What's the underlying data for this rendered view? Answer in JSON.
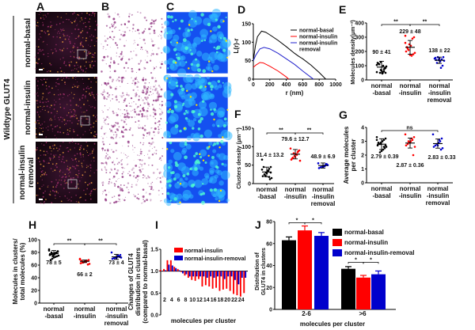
{
  "panel_letters": {
    "A": "A",
    "B": "B",
    "C": "C",
    "D": "D",
    "E": "E",
    "F": "F",
    "G": "G",
    "H": "H",
    "I": "I",
    "J": "J"
  },
  "images": {
    "group_label": "Wildtype GLUT4",
    "row_labels": [
      [
        "normal-basal"
      ],
      [
        "normal-insulin"
      ],
      [
        "normal-insulin",
        "removal"
      ]
    ]
  },
  "colors": {
    "basal": "#000000",
    "insulin": "#ff0000",
    "removal": "#0000cc",
    "heatmap_bg": "#1a5cff",
    "image_a_bg": "#150812",
    "image_b_dots": "#8a2a7a"
  },
  "chart_data": [
    {
      "id": "D",
      "type": "line",
      "xlabel": "r (nm)",
      "ylabel": "L(r)-r",
      "xlim": [
        0,
        1000
      ],
      "ylim": [
        0,
        150
      ],
      "xticks": [
        "0",
        "200",
        "400",
        "600",
        "800",
        "1000"
      ],
      "yticks": [
        "0",
        "50",
        "100",
        "150"
      ],
      "legend_placement": "top-right",
      "series": [
        {
          "name": "normal-basal",
          "color": "#000000",
          "points": [
            [
              0,
              50
            ],
            [
              25,
              90
            ],
            [
              50,
              115
            ],
            [
              100,
              130
            ],
            [
              150,
              127
            ],
            [
              200,
              120
            ],
            [
              300,
              105
            ],
            [
              400,
              88
            ],
            [
              500,
              70
            ],
            [
              550,
              62
            ],
            [
              600,
              55
            ],
            [
              700,
              38
            ],
            [
              800,
              18
            ],
            [
              880,
              0
            ]
          ]
        },
        {
          "name": "normal-insulin",
          "color": "#ff0000",
          "points": [
            [
              0,
              32
            ],
            [
              30,
              38
            ],
            [
              80,
              45
            ],
            [
              120,
              44
            ],
            [
              200,
              35
            ],
            [
              300,
              22
            ],
            [
              400,
              6
            ],
            [
              430,
              0
            ]
          ]
        },
        {
          "name": "normal-insulin\nremoval",
          "legend_lines": [
            "normal-insulin",
            "removal"
          ],
          "color": "#2222cc",
          "points": [
            [
              0,
              50
            ],
            [
              30,
              65
            ],
            [
              80,
              82
            ],
            [
              130,
              86
            ],
            [
              200,
              82
            ],
            [
              300,
              70
            ],
            [
              400,
              55
            ],
            [
              500,
              40
            ],
            [
              600,
              22
            ],
            [
              700,
              5
            ],
            [
              730,
              0
            ]
          ]
        }
      ]
    },
    {
      "id": "E",
      "type": "scatter",
      "ylabel": "Molecules density(μm⁻²)",
      "ylim": [
        0,
        400
      ],
      "yticks": [
        "0",
        "100",
        "200",
        "300",
        "400"
      ],
      "categories": [
        [
          "normal",
          "-basal"
        ],
        [
          "normal",
          "-insulin"
        ],
        [
          "normal",
          "-insulin",
          "removal"
        ]
      ],
      "series": [
        {
          "color": "#000000",
          "mean": 90,
          "sd": 41,
          "label": "90 ± 41",
          "values": [
            55,
            50,
            60,
            45,
            70,
            110,
            120,
            95,
            80,
            100,
            65,
            50,
            115,
            105,
            85,
            75,
            55,
            125
          ]
        },
        {
          "color": "#ff0000",
          "mean": 229,
          "sd": 48,
          "label": "229 ± 48",
          "values": [
            310,
            300,
            290,
            240,
            250,
            220,
            200,
            190,
            180,
            170,
            175,
            210,
            230,
            260
          ]
        },
        {
          "color": "#0000cc",
          "mean": 138,
          "sd": 22,
          "label": "138 ± 22",
          "values": [
            150,
            160,
            145,
            130,
            140,
            120,
            155,
            135,
            100,
            85,
            150,
            160,
            140
          ]
        }
      ],
      "significance": [
        {
          "from": 0,
          "to": 1,
          "label": "**"
        },
        {
          "from": 1,
          "to": 2,
          "label": "**"
        }
      ]
    },
    {
      "id": "F",
      "type": "scatter",
      "ylabel": "Clusters density (μm⁻²)",
      "ylim": [
        0,
        150
      ],
      "yticks": [
        "0",
        "50",
        "100",
        "150"
      ],
      "categories": [
        [
          "normal",
          "-basal"
        ],
        [
          "normal",
          "-insulin"
        ],
        [
          "normal",
          "-insulin",
          "removal"
        ]
      ],
      "series": [
        {
          "color": "#000000",
          "mean": 31.4,
          "sd": 13.2,
          "label": "31.4 ± 13.2",
          "values": [
            65,
            45,
            40,
            35,
            30,
            25,
            20,
            15,
            12,
            35,
            28,
            22,
            45,
            38,
            30,
            18
          ]
        },
        {
          "color": "#ff0000",
          "mean": 79.6,
          "sd": 12.7,
          "label": "79.6 ± 12.7",
          "values": [
            95,
            90,
            85,
            80,
            75,
            70,
            65,
            62,
            88,
            78,
            72,
            82,
            68
          ]
        },
        {
          "color": "#0000cc",
          "mean": 48.9,
          "sd": 6.9,
          "label": "48.9 ± 6.9",
          "values": [
            55,
            52,
            50,
            48,
            46,
            44,
            42,
            50,
            53,
            47,
            45
          ]
        }
      ],
      "significance": [
        {
          "from": 0,
          "to": 1,
          "label": "**"
        },
        {
          "from": 1,
          "to": 2,
          "label": "**"
        }
      ]
    },
    {
      "id": "G",
      "type": "scatter",
      "ylabel": "Average  molecules\nper cluster",
      "ylabel_lines": [
        "Average  molecules",
        "per cluster"
      ],
      "ylim": [
        0,
        4
      ],
      "yticks": [
        "0",
        "1",
        "2",
        "3",
        "4"
      ],
      "categories": [
        [
          "normal",
          "-basal"
        ],
        [
          "normal",
          "-insulin"
        ],
        [
          "normal",
          "-insulin",
          "removal"
        ]
      ],
      "series": [
        {
          "color": "#000000",
          "mean": 2.79,
          "sd": 0.39,
          "label": "2.79 ± 0.39",
          "values": [
            3.3,
            3.2,
            3.1,
            3.0,
            2.9,
            2.8,
            2.7,
            2.6,
            2.5,
            2.4,
            2.3,
            2.2,
            2.9,
            3.1,
            2.7,
            2.6,
            3.0,
            2.8
          ]
        },
        {
          "color": "#ff0000",
          "mean": 2.87,
          "sd": 0.36,
          "label": "2.87 ± 0.36",
          "values": [
            3.5,
            3.3,
            3.1,
            3.0,
            2.9,
            2.8,
            2.7,
            2.6,
            2.0,
            3.2,
            2.9,
            3.0
          ]
        },
        {
          "color": "#0000cc",
          "mean": 2.83,
          "sd": 0.33,
          "label": "2.83 ± 0.33",
          "values": [
            3.5,
            3.2,
            3.0,
            2.9,
            2.8,
            2.7,
            2.6,
            2.5,
            2.4,
            3.1,
            2.7
          ]
        }
      ],
      "significance": [
        {
          "from": 0,
          "to": 2,
          "label": "ns"
        }
      ]
    },
    {
      "id": "H",
      "type": "scatter",
      "ylabel_lines": [
        "Molecules in clusters/",
        "total molecules (%)"
      ],
      "ylim": [
        0,
        100
      ],
      "yticks": [
        "0",
        "20",
        "40",
        "60",
        "80",
        "100"
      ],
      "categories": [
        [
          "normal",
          "-basal"
        ],
        [
          "normal",
          "-insulin"
        ],
        [
          "normal",
          "-insulin",
          "removal"
        ]
      ],
      "series": [
        {
          "color": "#000000",
          "mean": 78,
          "sd": 5,
          "label": "78 ± 5",
          "values": [
            85,
            82,
            80,
            79,
            78,
            77,
            76,
            75,
            74,
            73,
            72,
            70,
            68,
            83,
            81,
            79,
            77,
            75,
            80,
            76
          ]
        },
        {
          "color": "#ff0000",
          "mean": 66,
          "sd": 2,
          "label": "66 ± 2",
          "values": [
            70,
            68,
            67,
            66,
            65,
            64,
            63,
            62,
            61,
            66,
            65,
            64,
            67,
            69
          ]
        },
        {
          "color": "#0000cc",
          "mean": 73,
          "sd": 4,
          "label": "73 ± 4",
          "values": [
            80,
            76,
            74,
            73,
            72,
            71,
            70,
            72,
            73,
            75,
            71
          ]
        }
      ],
      "significance": [
        {
          "from": 0,
          "to": 1,
          "label": "**"
        },
        {
          "from": 1,
          "to": 2,
          "label": "**"
        }
      ]
    },
    {
      "id": "I",
      "type": "bar",
      "xlabel": "molecules per cluster",
      "ylabel_lines": [
        "Changes of GLUT4",
        "distribution in clusters",
        "(compared to normal-basal)"
      ],
      "ylim": [
        0,
        1.5
      ],
      "baseline": 1.0,
      "yticks": [
        "0.0",
        "0.5",
        "1.0",
        "1.5"
      ],
      "xticks": [
        "2",
        "4",
        "6",
        "8",
        "10",
        "12",
        "14",
        "16",
        "18",
        "20",
        "22",
        "24"
      ],
      "categories": [
        1,
        2,
        3,
        4,
        5,
        6,
        7,
        8,
        9,
        10,
        11,
        12,
        13,
        14,
        15,
        16,
        17,
        18,
        19,
        20,
        21,
        22,
        23,
        24,
        25
      ],
      "legend_placement": "top-right",
      "series": [
        {
          "name": "normal-insulin",
          "color": "#ff0000",
          "values": [
            1.03,
            1.05,
            1.25,
            1.25,
            1.1,
            1.05,
            0.98,
            0.9,
            0.85,
            0.8,
            0.78,
            0.82,
            0.65,
            0.68,
            0.65,
            0.6,
            0.62,
            0.55,
            0.58,
            0.6,
            0.55,
            0.48,
            0.45,
            0.42,
            0.5
          ]
        },
        {
          "name": "normal-insulin-removal",
          "color": "#0000cc",
          "values": [
            1.0,
            1.02,
            1.15,
            1.13,
            1.07,
            1.02,
            0.95,
            0.93,
            0.88,
            0.88,
            0.88,
            0.88,
            0.88,
            0.85,
            0.88,
            0.85,
            0.88,
            0.88,
            0.82,
            0.88,
            0.88,
            0.8,
            0.7,
            0.85,
            0.85
          ]
        }
      ]
    },
    {
      "id": "J",
      "type": "bar",
      "xlabel": "molecules per cluster",
      "ylabel_lines": [
        "Distribution of",
        "GLUT4 in clusters"
      ],
      "ylim": [
        0,
        80
      ],
      "yticks": [
        "0",
        "20",
        "40",
        "60",
        "80"
      ],
      "categories": [
        "2-6",
        ">6"
      ],
      "legend_placement": "top-right",
      "series": [
        {
          "name": "normal-basal",
          "color": "#000000",
          "values": [
            63,
            37
          ],
          "errors": [
            3,
            2
          ]
        },
        {
          "name": "normal-insulin",
          "color": "#ff0000",
          "values": [
            72,
            29
          ],
          "errors": [
            4,
            2
          ]
        },
        {
          "name": "normal-insulin-removal",
          "color": "#0000cc",
          "values": [
            67,
            32
          ],
          "errors": [
            3,
            3
          ]
        }
      ],
      "significance": [
        {
          "group": 0,
          "from": 0,
          "to": 1,
          "label": "*"
        },
        {
          "group": 0,
          "from": 1,
          "to": 2,
          "label": "*"
        },
        {
          "group": 1,
          "from": 0,
          "to": 1,
          "label": "*"
        },
        {
          "group": 1,
          "from": 1,
          "to": 2,
          "label": "*"
        }
      ]
    }
  ]
}
